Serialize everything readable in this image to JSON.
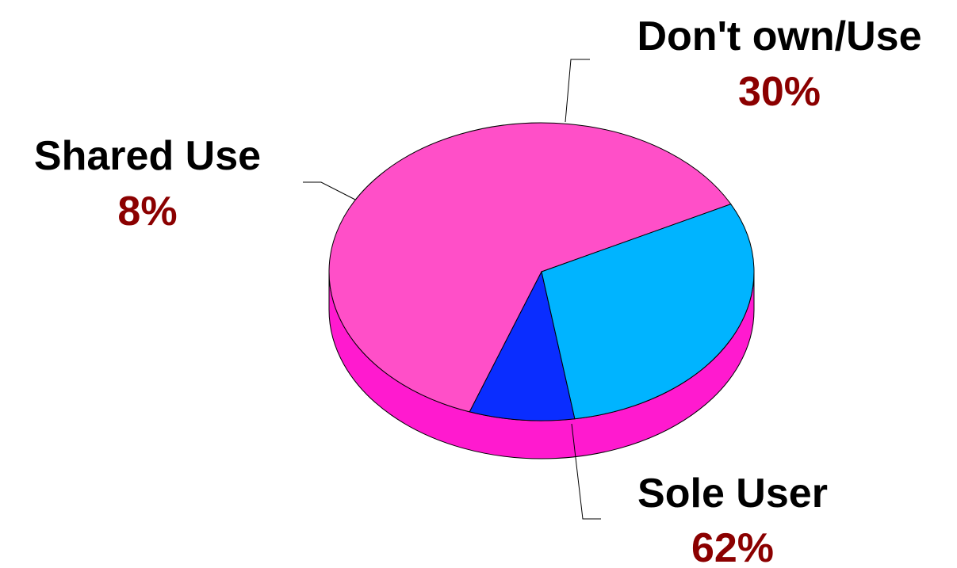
{
  "chart_data": {
    "type": "pie",
    "style": "3d",
    "title": "",
    "label_value_color": "#8B0000",
    "slices": [
      {
        "name": "Sole User",
        "value": 62,
        "label": "62%",
        "color": "#FF4FC8",
        "side_color": "#FF1ACF"
      },
      {
        "name": "Shared Use",
        "value": 8,
        "label": "8%",
        "color": "#0A2DFF",
        "side_color": "#0A2DFF"
      },
      {
        "name": "Don't own/Use",
        "value": 30,
        "label": "30%",
        "color": "#00B4FF",
        "side_color": "#00B4FF"
      }
    ]
  }
}
